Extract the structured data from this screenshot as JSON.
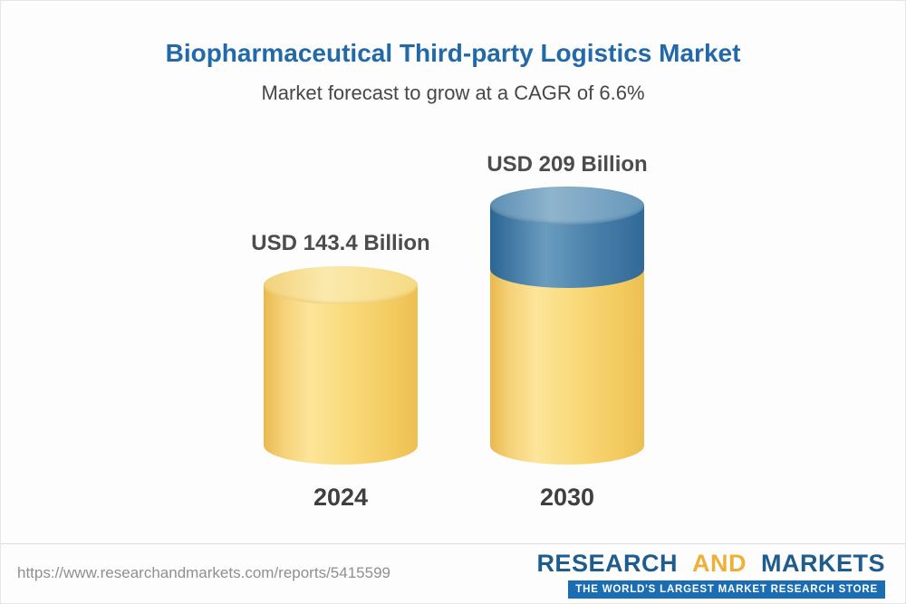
{
  "header": {
    "title": "Biopharmaceutical Third-party Logistics Market",
    "subtitle": "Market forecast to grow at a CAGR of 6.6%"
  },
  "chart_data": {
    "type": "bar",
    "categories": [
      "2024",
      "2030"
    ],
    "values": [
      143.4,
      209
    ],
    "unit": "USD Billion",
    "value_labels": [
      "USD 143.4 Billion",
      "USD 209 Billion"
    ],
    "title": "Biopharmaceutical Third-party Logistics Market",
    "subtitle": "Market forecast to grow at a CAGR of 6.6%",
    "cagr_percent": 6.6,
    "xlabel": "",
    "ylabel": "",
    "grid": false,
    "legend": false,
    "style": "3d-cylinder",
    "colors": {
      "base_segment": "#f8d271",
      "growth_segment": "#3f7ca8"
    }
  },
  "footer": {
    "url": "https://www.researchandmarkets.com/reports/5415599",
    "logo": {
      "word1": "RESEARCH",
      "word2": "AND",
      "word3": "MARKETS",
      "tagline": "THE WORLD'S LARGEST MARKET RESEARCH STORE"
    }
  }
}
